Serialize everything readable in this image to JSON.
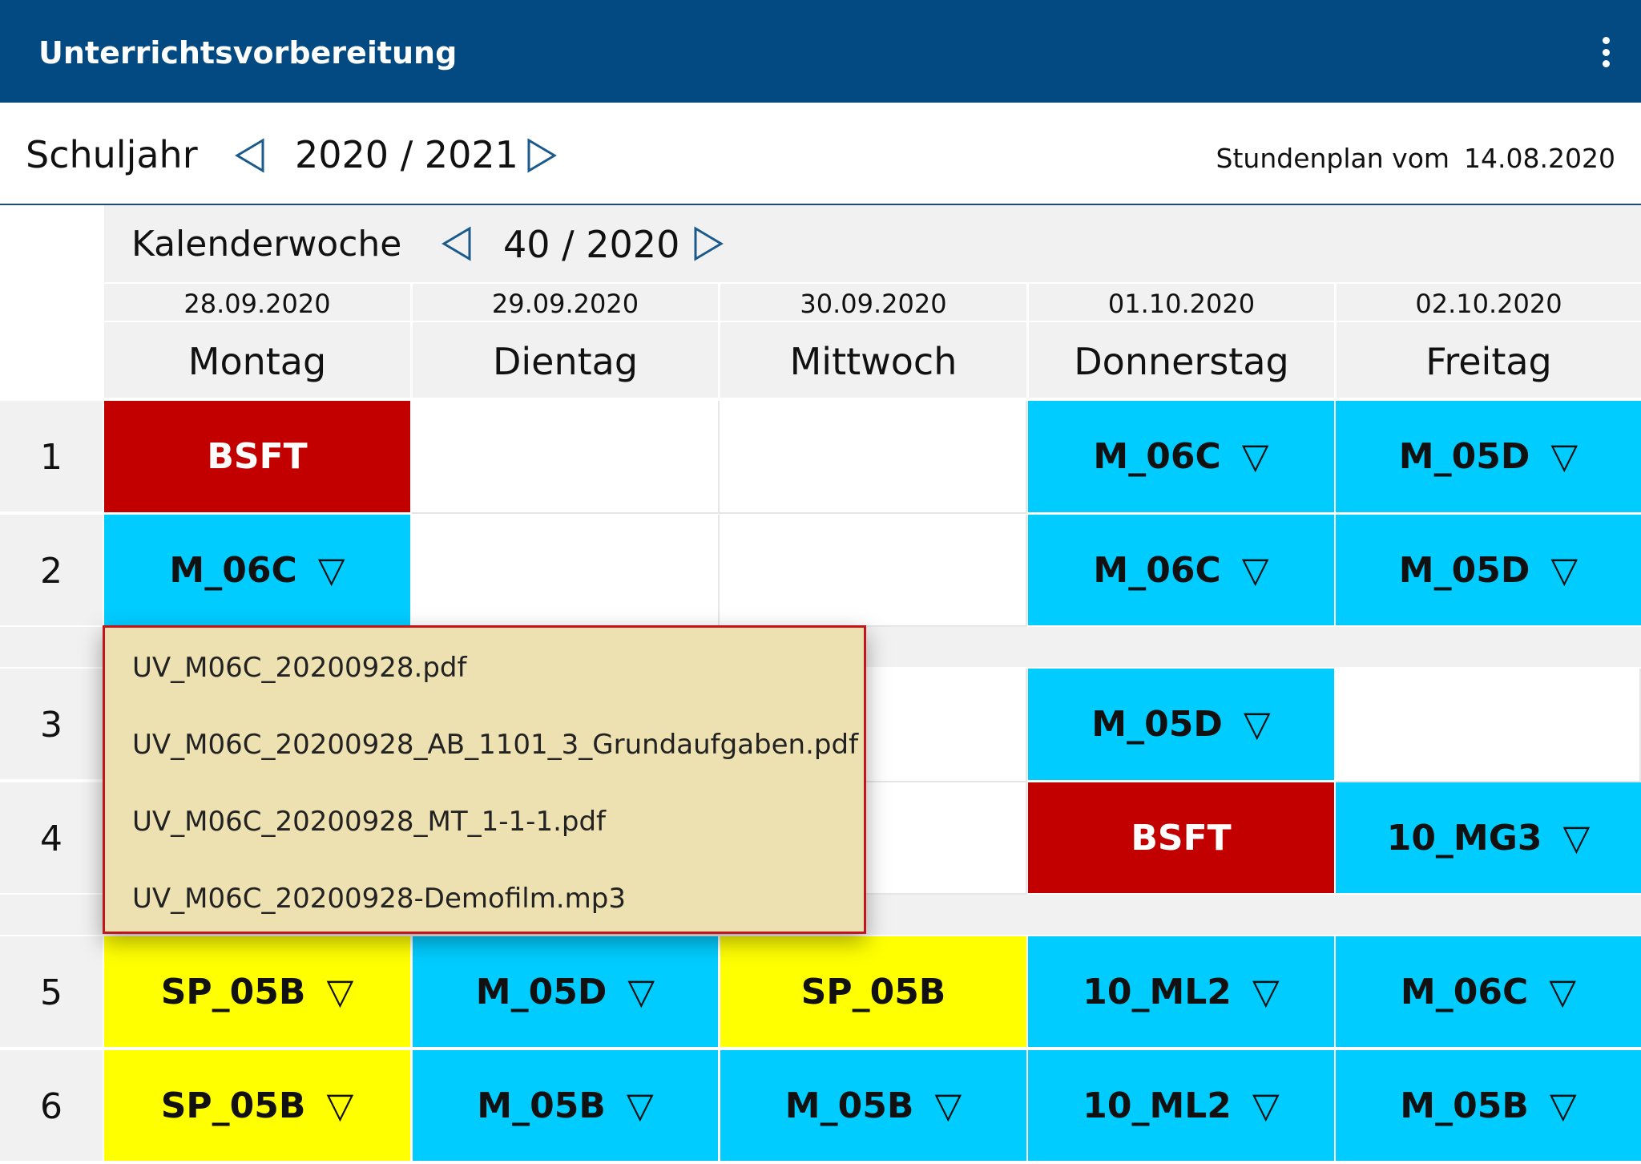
{
  "app": {
    "title": "Unterrichtsvorbereitung",
    "menu_icon": "more-vert-icon"
  },
  "year": {
    "label": "Schuljahr",
    "value": "2020 / 2021",
    "plan_label": "Stundenplan vom",
    "plan_date": "14.08.2020"
  },
  "week": {
    "label": "Kalenderwoche",
    "value": "40 / 2020"
  },
  "days": [
    {
      "date": "28.09.2020",
      "name": "Montag"
    },
    {
      "date": "29.09.2020",
      "name": "Dientag"
    },
    {
      "date": "30.09.2020",
      "name": "Mittwoch"
    },
    {
      "date": "01.10.2020",
      "name": "Donnerstag"
    },
    {
      "date": "02.10.2020",
      "name": "Freitag"
    }
  ],
  "periods": [
    "1",
    "2",
    "3",
    "4",
    "5",
    "6"
  ],
  "colors": {
    "appbar": "#034a82",
    "lesson": "#00ccff",
    "event": "#c20000",
    "sport": "#ffff00",
    "popup_bg": "#ede1b1",
    "popup_border": "#c0161c"
  },
  "timetable": {
    "p1": {
      "d1": "BSFT",
      "d4": "M_06C",
      "d5": "M_05D"
    },
    "p2": {
      "d1": "M_06C",
      "d4": "M_06C",
      "d5": "M_05D"
    },
    "p3": {
      "d4": "M_05D"
    },
    "p4": {
      "d4": "BSFT",
      "d5": "10_MG3"
    },
    "p5": {
      "d1": "SP_05B",
      "d2": "M_05D",
      "d3": "SP_05B",
      "d4": "10_ML2",
      "d5": "M_06C"
    },
    "p6": {
      "d1": "SP_05B",
      "d2": "M_05B",
      "d3": "M_05B",
      "d4": "10_ML2",
      "d5": "M_05B"
    }
  },
  "dropdown_symbol": "▽",
  "popup": {
    "files": [
      "UV_M06C_20200928.pdf",
      "UV_M06C_20200928_AB_1101_3_Grundaufgaben.pdf",
      "UV_M06C_20200928_MT_1-1-1.pdf",
      "UV_M06C_20200928-Demofilm.mp3"
    ]
  }
}
